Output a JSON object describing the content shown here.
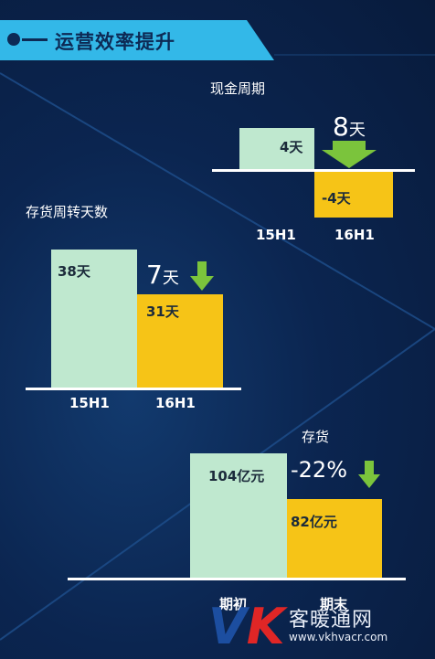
{
  "header": {
    "title": "运营效率提升"
  },
  "cash_cycle": {
    "title": "现金周期",
    "bar_15h1_label": "4天",
    "bar_16h1_label": "-4天",
    "change_num": "8",
    "change_unit": "天",
    "x_labels": [
      "15H1",
      "16H1"
    ]
  },
  "inventory_days": {
    "title": "存货周转天数",
    "bar_15h1_label": "38天",
    "bar_16h1_label": "31天",
    "change_num": "7",
    "change_unit": "天",
    "x_labels": [
      "15H1",
      "16H1"
    ]
  },
  "inventory": {
    "title": "存货",
    "bar_start_label": "104亿元",
    "bar_end_label": "82亿元",
    "change": "-22%",
    "x_labels": [
      "期初",
      "期末"
    ]
  },
  "watermark": {
    "logo_v": "V",
    "logo_k": "K",
    "text": "客暖通网",
    "url": "www.vkhvacr.com"
  },
  "chart_data": [
    {
      "type": "bar",
      "title": "现金周期",
      "categories": [
        "15H1",
        "16H1"
      ],
      "values": [
        4,
        -4
      ]
    },
    {
      "type": "bar",
      "title": "存货周转天数",
      "categories": [
        "15H1",
        "16H1"
      ],
      "values": [
        38,
        31
      ]
    },
    {
      "type": "bar",
      "title": "存货",
      "categories": [
        "期初",
        "期末"
      ],
      "values": [
        104,
        82
      ]
    }
  ]
}
